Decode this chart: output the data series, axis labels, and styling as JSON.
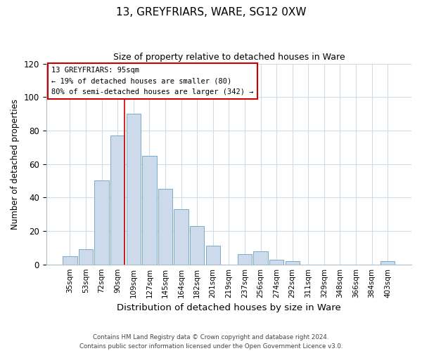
{
  "title": "13, GREYFRIARS, WARE, SG12 0XW",
  "subtitle": "Size of property relative to detached houses in Ware",
  "xlabel": "Distribution of detached houses by size in Ware",
  "ylabel": "Number of detached properties",
  "bar_color": "#ccdaeb",
  "bar_edge_color": "#7aaac8",
  "categories": [
    "35sqm",
    "53sqm",
    "72sqm",
    "90sqm",
    "109sqm",
    "127sqm",
    "145sqm",
    "164sqm",
    "182sqm",
    "201sqm",
    "219sqm",
    "237sqm",
    "256sqm",
    "274sqm",
    "292sqm",
    "311sqm",
    "329sqm",
    "348sqm",
    "366sqm",
    "384sqm",
    "403sqm"
  ],
  "values": [
    5,
    9,
    50,
    77,
    90,
    65,
    45,
    33,
    23,
    11,
    0,
    6,
    8,
    3,
    2,
    0,
    0,
    0,
    0,
    0,
    2
  ],
  "vline_x_index": 3,
  "vline_color": "#cc0000",
  "ylim": [
    0,
    120
  ],
  "yticks": [
    0,
    20,
    40,
    60,
    80,
    100,
    120
  ],
  "annotation_title": "13 GREYFRIARS: 95sqm",
  "annotation_line1": "← 19% of detached houses are smaller (80)",
  "annotation_line2": "80% of semi-detached houses are larger (342) →",
  "footer1": "Contains HM Land Registry data © Crown copyright and database right 2024.",
  "footer2": "Contains public sector information licensed under the Open Government Licence v3.0.",
  "grid_color": "#d0dce8",
  "spine_color": "#b0bcc8"
}
